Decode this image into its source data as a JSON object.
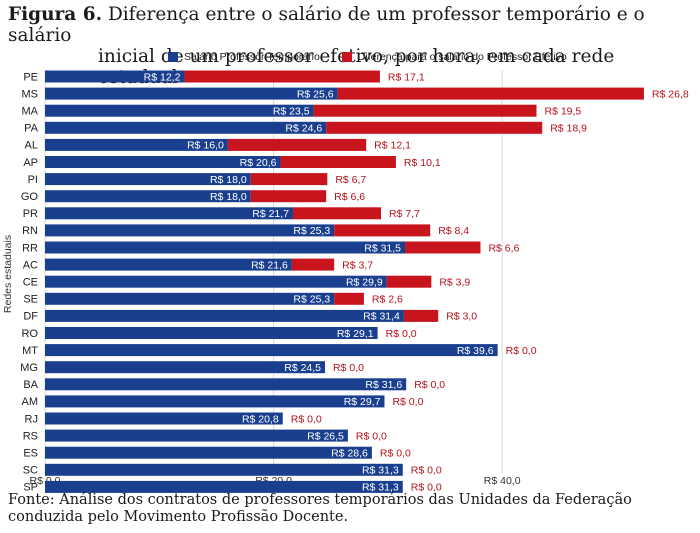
{
  "title": {
    "figure_label": "Figura 6.",
    "line1": "Diferença entre o salário de um professor temporário e o salário",
    "line2": "inicial de um professor efetivo, por hora, em cada rede estadual"
  },
  "source": {
    "line1": "Fonte: Análise dos contratos de professores temporários das Unidades da Federação",
    "line2": "conduzida pelo Movimento Profissão Docente."
  },
  "colors": {
    "temp": "#1b3f8f",
    "diff": "#c8141c",
    "temp_label": "#ffffff",
    "diff_label": "#b5121b"
  },
  "chart_data": {
    "type": "bar",
    "orientation": "horizontal",
    "stacked": true,
    "ylabel": "Redes estaduais",
    "xlim": [
      0,
      55
    ],
    "xticks": [
      0,
      20,
      40
    ],
    "xtick_labels": [
      "R$ 0,0",
      "R$ 20,0",
      "R$ 40,0"
    ],
    "categories": [
      "PE",
      "MS",
      "MA",
      "PA",
      "AL",
      "AP",
      "PI",
      "GO",
      "PR",
      "RN",
      "RR",
      "AC",
      "CE",
      "SE",
      "DF",
      "RO",
      "MT",
      "MG",
      "BA",
      "AM",
      "RJ",
      "RS",
      "ES",
      "SC",
      "SP"
    ],
    "series": [
      {
        "name": "Salário Professor Temporário",
        "values": [
          12.2,
          25.6,
          23.5,
          24.6,
          16.0,
          20.6,
          18.0,
          18.0,
          21.7,
          25.3,
          31.5,
          21.6,
          29.9,
          25.3,
          31.4,
          29.1,
          39.6,
          24.5,
          31.6,
          29.7,
          20.8,
          26.5,
          28.6,
          31.3,
          31.3
        ],
        "labels": [
          "R$ 12,2",
          "R$ 25,6",
          "R$ 23,5",
          "R$ 24,6",
          "R$ 16,0",
          "R$ 20,6",
          "R$ 18,0",
          "R$ 18,0",
          "R$ 21,7",
          "R$ 25,3",
          "R$ 31,5",
          "R$ 21,6",
          "R$ 29,9",
          "R$ 25,3",
          "R$ 31,4",
          "R$ 29,1",
          "R$ 39,6",
          "R$ 24,5",
          "R$ 31,6",
          "R$ 29,7",
          "R$ 20,8",
          "R$ 26,5",
          "R$ 28,6",
          "R$ 31,3",
          "R$ 31,3"
        ]
      },
      {
        "name": "Diferença para o salário do Professor Efetivo",
        "values": [
          17.1,
          26.8,
          19.5,
          18.9,
          12.1,
          10.1,
          6.7,
          6.6,
          7.7,
          8.4,
          6.6,
          3.7,
          3.9,
          2.6,
          3.0,
          0,
          0,
          0,
          0,
          0,
          0,
          0,
          0,
          0,
          0
        ],
        "labels": [
          "R$ 17,1",
          "R$ 26,8",
          "R$ 19,5",
          "R$ 18,9",
          "R$ 12,1",
          "R$ 10,1",
          "R$ 6,7",
          "R$ 6,6",
          "R$ 7,7",
          "R$ 8,4",
          "R$ 6,6",
          "R$ 3,7",
          "R$ 3,9",
          "R$ 2,6",
          "R$ 3,0",
          "R$ 0,0",
          "R$ 0,0",
          "R$ 0,0",
          "R$ 0,0",
          "R$ 0,0",
          "R$ 0,0",
          "R$ 0,0",
          "R$ 0,0",
          "R$ 0,0",
          "R$ 0,0"
        ]
      }
    ]
  }
}
